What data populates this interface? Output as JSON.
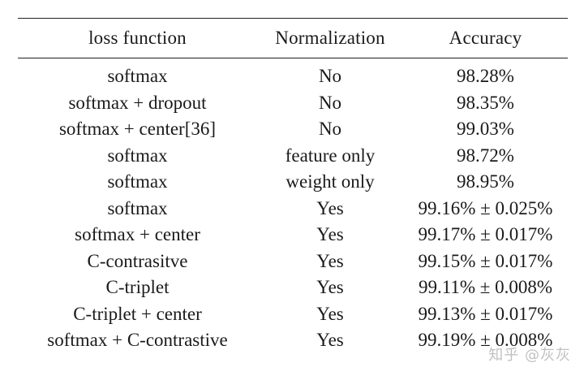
{
  "table": {
    "headers": [
      "loss function",
      "Normalization",
      "Accuracy"
    ],
    "rows": [
      [
        "softmax",
        "No",
        "98.28%"
      ],
      [
        "softmax + dropout",
        "No",
        "98.35%"
      ],
      [
        "softmax + center[36]",
        "No",
        "99.03%"
      ],
      [
        "softmax",
        "feature only",
        "98.72%"
      ],
      [
        "softmax",
        "weight only",
        "98.95%"
      ],
      [
        "softmax",
        "Yes",
        "99.16% ± 0.025%"
      ],
      [
        "softmax + center",
        "Yes",
        "99.17% ± 0.017%"
      ],
      [
        "C-contrasitve",
        "Yes",
        "99.15% ± 0.017%"
      ],
      [
        "C-triplet",
        "Yes",
        "99.11% ± 0.008%"
      ],
      [
        "C-triplet + center",
        "Yes",
        "99.13% ± 0.017%"
      ],
      [
        "softmax + C-contrastive",
        "Yes",
        "99.19% ± 0.008%"
      ]
    ]
  },
  "watermark": "知乎 @灰灰"
}
